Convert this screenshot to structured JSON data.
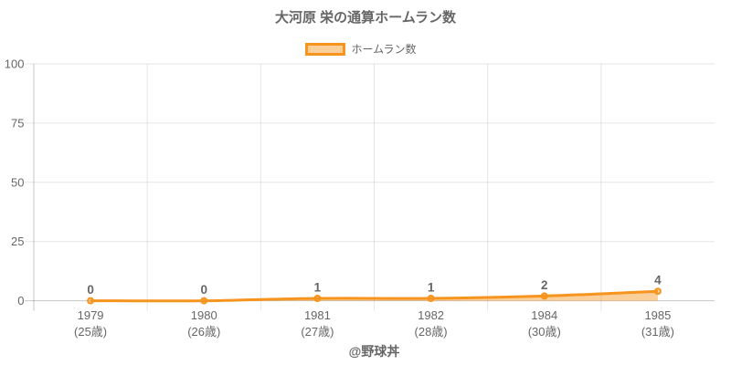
{
  "title": "大河原 栄の通算ホームラン数",
  "legend": {
    "label": "ホームラン数"
  },
  "footer": "@野球丼",
  "colors": {
    "line": "#f7941e",
    "area_fill": "rgba(247,148,30,0.45)",
    "grid": "rgba(0,0,0,0.1)",
    "zero_line": "rgba(0,0,0,0.22)",
    "text": "#666666"
  },
  "chart_data": {
    "type": "area",
    "title": "大河原 栄の通算ホームラン数",
    "legend_entries": [
      "ホームラン数"
    ],
    "categories": [
      "1979",
      "1980",
      "1981",
      "1982",
      "1984",
      "1985"
    ],
    "category_sublabels": [
      "(25歳)",
      "(26歳)",
      "(27歳)",
      "(28歳)",
      "(30歳)",
      "(31歳)"
    ],
    "values": [
      0,
      0,
      1,
      1,
      2,
      4
    ],
    "point_labels": [
      "0",
      "0",
      "1",
      "1",
      "2",
      "4"
    ],
    "yticks": [
      0,
      25,
      50,
      75,
      100
    ],
    "ylim": [
      0,
      100
    ],
    "xlabel": "",
    "ylabel": "",
    "grid": true,
    "legend_position": "top",
    "line_smoothing": 0.4
  }
}
